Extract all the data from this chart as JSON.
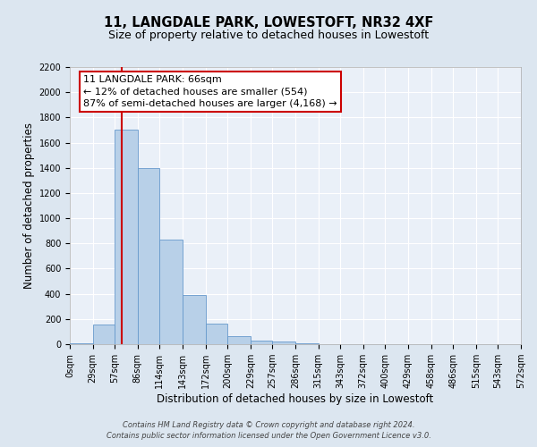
{
  "title": "11, LANGDALE PARK, LOWESTOFT, NR32 4XF",
  "subtitle": "Size of property relative to detached houses in Lowestoft",
  "xlabel": "Distribution of detached houses by size in Lowestoft",
  "ylabel": "Number of detached properties",
  "bin_edges": [
    0,
    29,
    57,
    86,
    114,
    143,
    172,
    200,
    229,
    257,
    286,
    315,
    343,
    372,
    400,
    429,
    458,
    486,
    515,
    543,
    572
  ],
  "bin_labels": [
    "0sqm",
    "29sqm",
    "57sqm",
    "86sqm",
    "114sqm",
    "143sqm",
    "172sqm",
    "200sqm",
    "229sqm",
    "257sqm",
    "286sqm",
    "315sqm",
    "343sqm",
    "372sqm",
    "400sqm",
    "429sqm",
    "458sqm",
    "486sqm",
    "515sqm",
    "543sqm",
    "572sqm"
  ],
  "bar_heights": [
    5,
    155,
    1700,
    1400,
    830,
    390,
    165,
    65,
    30,
    20,
    5,
    3,
    2,
    1,
    1,
    1,
    0,
    0,
    0,
    0
  ],
  "bar_color": "#b8d0e8",
  "bar_edge_color": "#6699cc",
  "vline_x": 66,
  "vline_color": "#cc0000",
  "ylim": [
    0,
    2200
  ],
  "yticks": [
    0,
    200,
    400,
    600,
    800,
    1000,
    1200,
    1400,
    1600,
    1800,
    2000,
    2200
  ],
  "annotation_title": "11 LANGDALE PARK: 66sqm",
  "annotation_line1": "← 12% of detached houses are smaller (554)",
  "annotation_line2": "87% of semi-detached houses are larger (4,168) →",
  "annotation_box_facecolor": "#ffffff",
  "annotation_box_edgecolor": "#cc0000",
  "footer_line1": "Contains HM Land Registry data © Crown copyright and database right 2024.",
  "footer_line2": "Contains public sector information licensed under the Open Government Licence v3.0.",
  "bg_color": "#dce6f0",
  "plot_bg_color": "#eaf0f8",
  "grid_color": "#ffffff",
  "title_fontsize": 10.5,
  "subtitle_fontsize": 9,
  "axis_label_fontsize": 8.5,
  "tick_fontsize": 7,
  "annot_fontsize": 8,
  "footer_fontsize": 6
}
